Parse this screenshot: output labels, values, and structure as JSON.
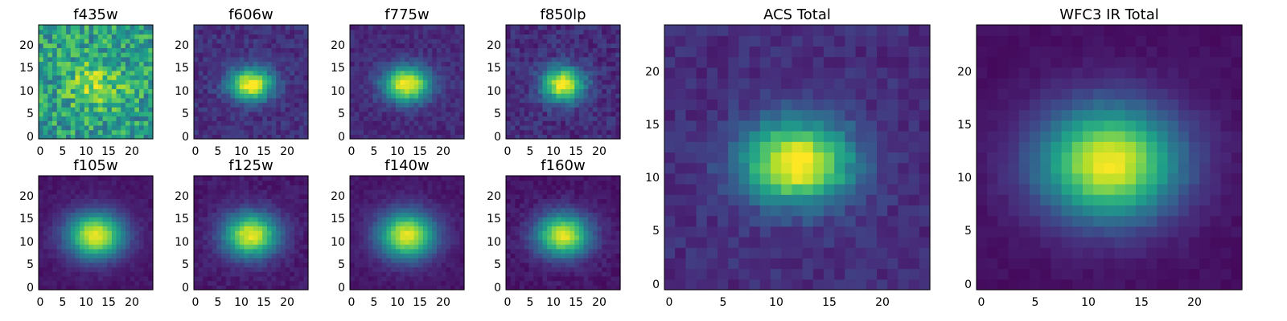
{
  "chart_data": [
    {
      "type": "heatmap",
      "title": "f435w",
      "xticks": [
        "0",
        "5",
        "10",
        "15",
        "20"
      ],
      "yticks": [
        "0",
        "5",
        "10",
        "15",
        "20"
      ],
      "xlim": [
        0,
        25
      ],
      "ylim": [
        0,
        25
      ],
      "grid": false,
      "noise": 0.22,
      "peak": 0.28,
      "base": 0.55,
      "sx": 4.5,
      "sy": 3.8,
      "seed": 11
    },
    {
      "type": "heatmap",
      "title": "f606w",
      "xticks": [
        "0",
        "5",
        "10",
        "15",
        "20"
      ],
      "yticks": [
        "0",
        "5",
        "10",
        "15",
        "20"
      ],
      "xlim": [
        0,
        25
      ],
      "ylim": [
        0,
        25
      ],
      "grid": false,
      "noise": 0.07,
      "peak": 0.88,
      "base": 0.14,
      "sx": 3.3,
      "sy": 2.5,
      "seed": 22
    },
    {
      "type": "heatmap",
      "title": "f775w",
      "xticks": [
        "0",
        "5",
        "10",
        "15",
        "20"
      ],
      "yticks": [
        "0",
        "5",
        "10",
        "15",
        "20"
      ],
      "xlim": [
        0,
        25
      ],
      "ylim": [
        0,
        25
      ],
      "grid": false,
      "noise": 0.06,
      "peak": 0.9,
      "base": 0.12,
      "sx": 3.6,
      "sy": 2.7,
      "seed": 33
    },
    {
      "type": "heatmap",
      "title": "f850lp",
      "xticks": [
        "0",
        "5",
        "10",
        "15",
        "20"
      ],
      "yticks": [
        "0",
        "5",
        "10",
        "15",
        "20"
      ],
      "xlim": [
        0,
        25
      ],
      "ylim": [
        0,
        25
      ],
      "grid": false,
      "noise": 0.08,
      "peak": 0.88,
      "base": 0.13,
      "sx": 3.2,
      "sy": 2.6,
      "seed": 44
    },
    {
      "type": "heatmap",
      "title": "f105w",
      "xticks": [
        "0",
        "5",
        "10",
        "15",
        "20"
      ],
      "yticks": [
        "0",
        "5",
        "10",
        "15",
        "20"
      ],
      "xlim": [
        0,
        25
      ],
      "ylim": [
        0,
        25
      ],
      "grid": false,
      "noise": 0.03,
      "peak": 0.92,
      "base": 0.06,
      "sx": 4.4,
      "sy": 3.5,
      "seed": 55
    },
    {
      "type": "heatmap",
      "title": "f125w",
      "xticks": [
        "0",
        "5",
        "10",
        "15",
        "20"
      ],
      "yticks": [
        "0",
        "5",
        "10",
        "15",
        "20"
      ],
      "xlim": [
        0,
        25
      ],
      "ylim": [
        0,
        25
      ],
      "grid": false,
      "noise": 0.04,
      "peak": 0.9,
      "base": 0.07,
      "sx": 4.2,
      "sy": 3.4,
      "seed": 66
    },
    {
      "type": "heatmap",
      "title": "f140w",
      "xticks": [
        "0",
        "5",
        "10",
        "15",
        "20"
      ],
      "yticks": [
        "0",
        "5",
        "10",
        "15",
        "20"
      ],
      "xlim": [
        0,
        25
      ],
      "ylim": [
        0,
        25
      ],
      "grid": false,
      "noise": 0.03,
      "peak": 0.9,
      "base": 0.06,
      "sx": 4.4,
      "sy": 3.6,
      "seed": 77
    },
    {
      "type": "heatmap",
      "title": "f160w",
      "xticks": [
        "0",
        "5",
        "10",
        "15",
        "20"
      ],
      "yticks": [
        "0",
        "5",
        "10",
        "15",
        "20"
      ],
      "xlim": [
        0,
        25
      ],
      "ylim": [
        0,
        25
      ],
      "grid": false,
      "noise": 0.04,
      "peak": 0.9,
      "base": 0.06,
      "sx": 4.1,
      "sy": 3.3,
      "seed": 88
    },
    {
      "type": "heatmap",
      "title": "ACS Total",
      "xticks": [
        "0",
        "5",
        "10",
        "15",
        "20"
      ],
      "yticks": [
        "0",
        "5",
        "10",
        "15",
        "20"
      ],
      "xlim": [
        0,
        25
      ],
      "ylim": [
        0,
        25
      ],
      "grid": false,
      "noise": 0.06,
      "peak": 0.92,
      "base": 0.13,
      "sx": 3.6,
      "sy": 2.7,
      "seed": 99
    },
    {
      "type": "heatmap",
      "title": "WFC3 IR Total",
      "xticks": [
        "0",
        "5",
        "10",
        "15",
        "20"
      ],
      "yticks": [
        "0",
        "5",
        "10",
        "15",
        "20"
      ],
      "xlim": [
        0,
        25
      ],
      "ylim": [
        0,
        25
      ],
      "grid": false,
      "noise": 0.02,
      "peak": 0.95,
      "base": 0.04,
      "sx": 4.6,
      "sy": 3.7,
      "seed": 123
    }
  ],
  "colormap": "viridis",
  "cmap_colors": [
    "#440154",
    "#482878",
    "#3e4989",
    "#31688e",
    "#26828e",
    "#1f9e89",
    "#35b779",
    "#6ece58",
    "#b5de2b",
    "#fde725"
  ]
}
